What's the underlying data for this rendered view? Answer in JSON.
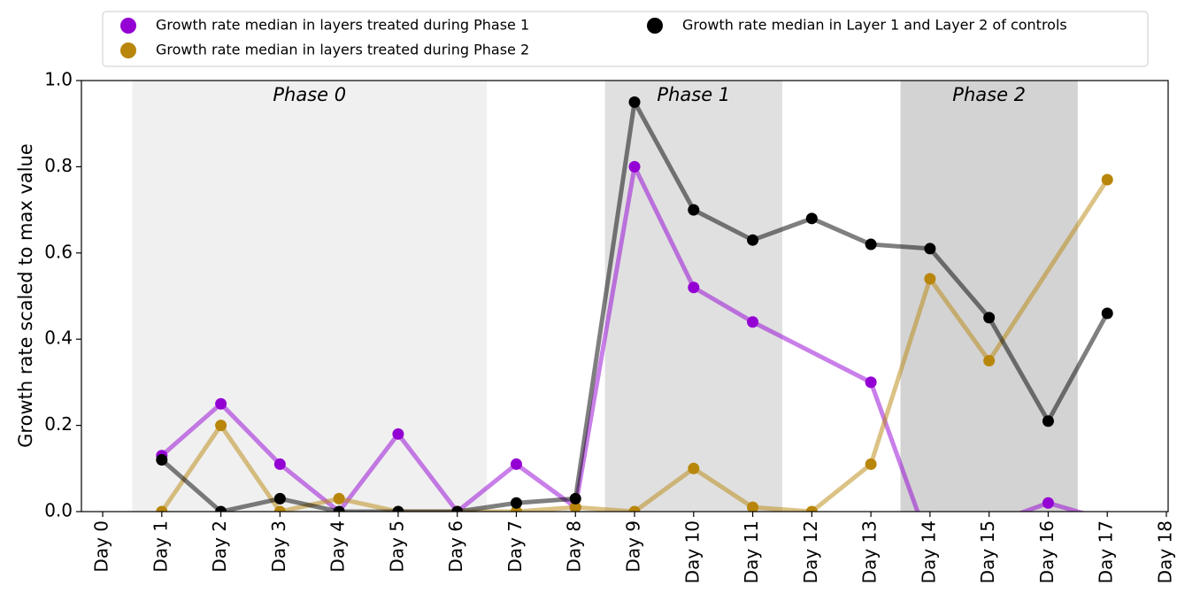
{
  "chart_data": {
    "type": "line",
    "ylabel": "Growth rate scaled to max value",
    "categories": [
      "Day 0",
      "Day 1",
      "Day 2",
      "Day 3",
      "Day 4",
      "Day 5",
      "Day 6",
      "Day 7",
      "Day 8",
      "Day 9",
      "Day 10",
      "Day 11",
      "Day 12",
      "Day 13",
      "Day 14",
      "Day 15",
      "Day 16",
      "Day 17",
      "Day 18"
    ],
    "xlim": [
      -0.36,
      18.03
    ],
    "ylim": [
      0,
      1
    ],
    "yticks": [
      {
        "value": 0,
        "label": "0.0"
      },
      0.2,
      0.4,
      0.6,
      0.8,
      {
        "value": 1,
        "label": "1.0"
      }
    ],
    "spans": [
      {
        "label": "Phase 0",
        "start": 0.5,
        "end": 6.5,
        "color": "#f0f0f0"
      },
      {
        "label": "Phase 1",
        "start": 8.5,
        "end": 11.5,
        "color": "#e0e0e0"
      },
      {
        "label": "Phase 2",
        "start": 13.5,
        "end": 16.5,
        "color": "#d3d3d3"
      }
    ],
    "legend": "upper center",
    "series": [
      {
        "name": "Growth rate median in layers treated during Phase 1",
        "color": "#9400d3",
        "x": [
          1,
          2,
          3,
          4,
          5,
          6,
          7,
          8,
          9,
          10,
          11,
          13,
          14,
          15,
          16,
          17
        ],
        "values": [
          0.13,
          0.25,
          0.11,
          0.0,
          0.18,
          0.0,
          0.11,
          0.01,
          0.8,
          0.52,
          0.44,
          0.3,
          -0.08,
          -0.03,
          0.02,
          -0.02
        ]
      },
      {
        "name": "Growth rate median in layers treated during Phase 2",
        "color": "#b8860b",
        "x": [
          1,
          2,
          3,
          4,
          5,
          6,
          7,
          8,
          9,
          10,
          11,
          12,
          13,
          14,
          15,
          17
        ],
        "values": [
          0.0,
          0.2,
          0.0,
          0.03,
          0.0,
          0.0,
          0.0,
          0.01,
          0.0,
          0.1,
          0.01,
          0.0,
          0.11,
          0.54,
          0.35,
          0.77
        ]
      },
      {
        "name": "Growth rate median in Layer 1 and Layer 2 of controls",
        "color": "#000000",
        "x": [
          1,
          2,
          3,
          4,
          5,
          6,
          7,
          8,
          9,
          10,
          11,
          12,
          13,
          14,
          15,
          16,
          17
        ],
        "values": [
          0.12,
          0.0,
          0.03,
          0.0,
          0.0,
          0.0,
          0.02,
          0.03,
          0.95,
          0.7,
          0.63,
          0.68,
          0.62,
          0.61,
          0.45,
          0.21,
          0.46
        ]
      }
    ]
  }
}
